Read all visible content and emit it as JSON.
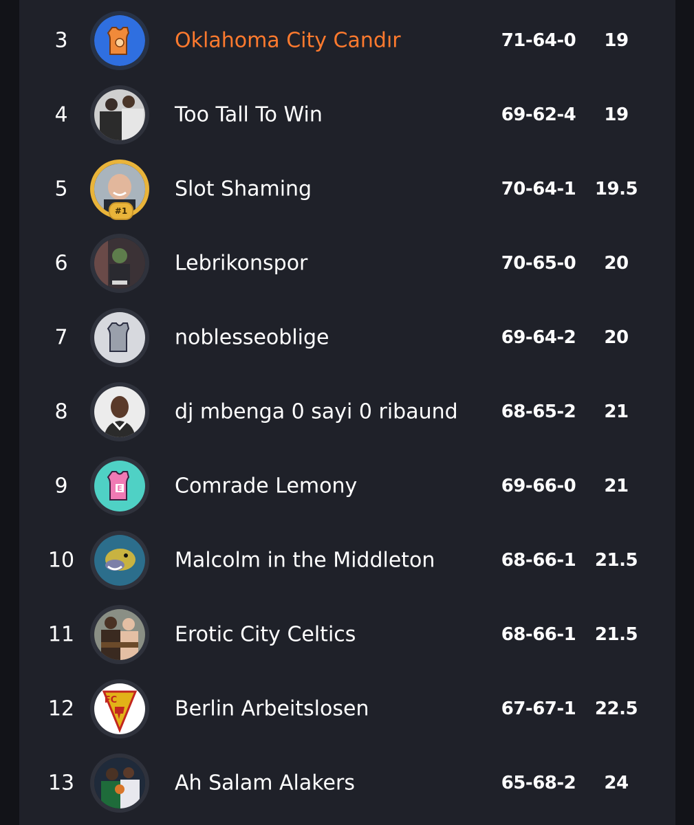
{
  "colors": {
    "background": "#121318",
    "panel": "#1f2129",
    "highlight": "#ff7a2e",
    "text": "#ffffff",
    "badge": "#e9b43a"
  },
  "standings": [
    {
      "rank": "3",
      "team": "Oklahoma City Candır",
      "record": "71-64-0",
      "gb": "19",
      "avatar": "orange-jersey-icon",
      "highlight": true
    },
    {
      "rank": "4",
      "team": "Too Tall To Win",
      "record": "69-62-4",
      "gb": "19",
      "avatar": "photo-avatar"
    },
    {
      "rank": "5",
      "team": "Slot Shaming",
      "record": "70-64-1",
      "gb": "19.5",
      "avatar": "photo-avatar",
      "badge": "#1"
    },
    {
      "rank": "6",
      "team": "Lebrikonspor",
      "record": "70-65-0",
      "gb": "20",
      "avatar": "photo-avatar"
    },
    {
      "rank": "7",
      "team": "noblesseoblige",
      "record": "69-64-2",
      "gb": "20",
      "avatar": "gray-jersey-icon"
    },
    {
      "rank": "8",
      "team": "dj mbenga 0 sayi 0 ribaund",
      "record": "68-65-2",
      "gb": "21",
      "avatar": "photo-avatar"
    },
    {
      "rank": "9",
      "team": "Comrade Lemony",
      "record": "69-66-0",
      "gb": "21",
      "avatar": "pink-jersey-icon",
      "jersey_letter": "E"
    },
    {
      "rank": "10",
      "team": "Malcolm in the Middleton",
      "record": "68-66-1",
      "gb": "21.5",
      "avatar": "photo-avatar"
    },
    {
      "rank": "11",
      "team": "Erotic City Celtics",
      "record": "68-66-1",
      "gb": "21.5",
      "avatar": "photo-avatar"
    },
    {
      "rank": "12",
      "team": "Berlin Arbeitslosen",
      "record": "67-67-1",
      "gb": "22.5",
      "avatar": "fc-logo-icon",
      "logo_letters": "FC"
    },
    {
      "rank": "13",
      "team": "Ah Salam Alakers",
      "record": "65-68-2",
      "gb": "24",
      "avatar": "photo-avatar"
    }
  ]
}
